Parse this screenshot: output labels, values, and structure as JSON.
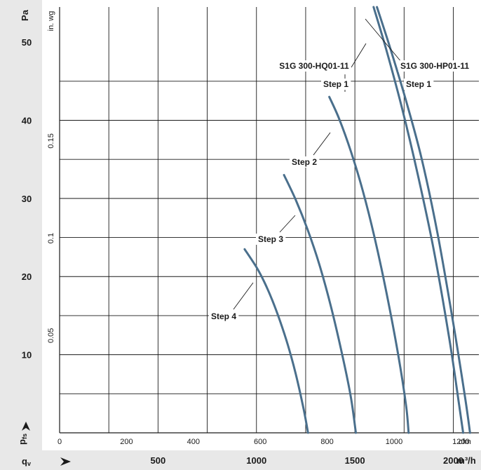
{
  "chart_data": {
    "type": "line",
    "title": "",
    "units": {
      "pressure_pa": "Pa",
      "pressure_inwg": "in. wg",
      "flow_cfm": "cfm",
      "flow_m3h": "m³/h",
      "pressure_symbol": "p",
      "pressure_subscript": "fs",
      "flow_symbol": "q",
      "flow_subscript": "v"
    },
    "x_axis_m3h": {
      "ticks": [
        "500",
        "1000",
        "1500",
        "2000"
      ],
      "range": [
        0,
        2130
      ]
    },
    "x_axis_cfm": {
      "ticks": [
        "0",
        "200",
        "400",
        "600",
        "800",
        "1000",
        "1200"
      ]
    },
    "y_axis_pa": {
      "ticks": [
        "10",
        "20",
        "30",
        "40",
        "50"
      ],
      "range": [
        0,
        54.5
      ]
    },
    "y_axis_inwg": {
      "ticks": [
        "0.05",
        "0.1",
        "0.15"
      ]
    },
    "grid": true,
    "series": [
      {
        "name": "Step 4",
        "x": [
          940,
          1000,
          1040,
          1080,
          1120,
          1160,
          1200,
          1240,
          1262
        ],
        "y": [
          23.5,
          21.2,
          19.3,
          17.0,
          14.3,
          11.2,
          7.5,
          3.0,
          0
        ]
      },
      {
        "name": "Step 3",
        "x": [
          1140,
          1200,
          1260,
          1320,
          1380,
          1440,
          1480,
          1505
        ],
        "y": [
          33.0,
          29.8,
          26.0,
          21.5,
          16.0,
          9.5,
          4.5,
          0
        ]
      },
      {
        "name": "Step 2",
        "x": [
          1370,
          1420,
          1480,
          1540,
          1600,
          1660,
          1720,
          1760,
          1773
        ],
        "y": [
          43.0,
          40.2,
          36.0,
          31.0,
          25.0,
          18.0,
          10.0,
          3.5,
          0
        ]
      },
      {
        "name": "S1G 300-HQ01-11 Step 1",
        "x": [
          1595,
          1660,
          1740,
          1820,
          1900,
          1980,
          2030,
          2050
        ],
        "y": [
          54.5,
          49.0,
          41.5,
          33.0,
          23.5,
          12.0,
          3.5,
          0
        ]
      },
      {
        "name": "S1G 300-HP01-11 Step 1",
        "x": [
          1612,
          1680,
          1760,
          1840,
          1920,
          2000,
          2060,
          2085
        ],
        "y": [
          54.5,
          49.2,
          42.5,
          35.0,
          25.5,
          14.0,
          4.5,
          0
        ]
      }
    ],
    "annotations": [
      {
        "text": "S1G 300-HQ01-11",
        "series": 3
      },
      {
        "text": "S1G 300-HP01-11",
        "series": 4
      },
      {
        "text": "Step 1",
        "series": 3
      },
      {
        "text": "Step 1",
        "series": 4
      },
      {
        "text": "Step 2",
        "series": 2
      },
      {
        "text": "Step 3",
        "series": 1
      },
      {
        "text": "Step 4",
        "series": 0
      }
    ],
    "colors": {
      "curve": "#4a6f8c",
      "grid": "#1a1a1a",
      "band": "#e8e8e8"
    }
  }
}
